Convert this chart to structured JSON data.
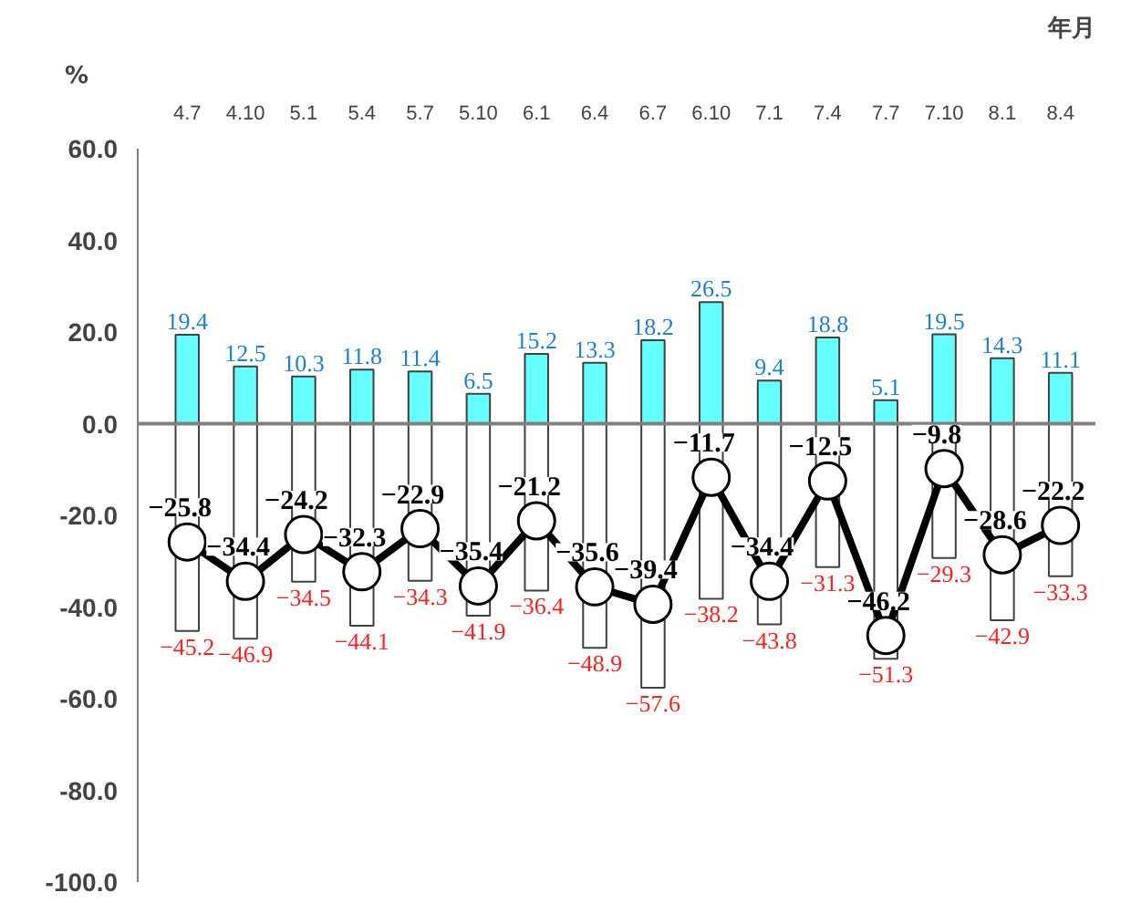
{
  "chart_data": {
    "type": "bar",
    "stacked": true,
    "xlabel": "年月",
    "ylabel": "%",
    "categories": [
      "4.7",
      "4.10",
      "5.1",
      "5.4",
      "5.7",
      "5.10",
      "6.1",
      "6.4",
      "6.7",
      "6.10",
      "7.1",
      "7.4",
      "7.7",
      "7.10",
      "8.1",
      "8.4"
    ],
    "series": [
      {
        "color": "#66ffff",
        "values": [
          19.4,
          12.5,
          10.3,
          11.8,
          11.4,
          6.5,
          15.2,
          13.3,
          18.2,
          26.5,
          9.4,
          18.8,
          5.1,
          19.5,
          14.3,
          11.1
        ]
      },
      {
        "color": "#ffffff",
        "values": [
          -45.2,
          -46.9,
          -34.5,
          -44.1,
          -34.3,
          -41.9,
          -36.4,
          -48.9,
          -57.6,
          -38.2,
          -43.8,
          -31.3,
          -51.3,
          -29.3,
          -42.9,
          -33.3
        ]
      },
      {
        "type": "line",
        "color": "#000000",
        "marker": "circle",
        "values": [
          -25.8,
          -34.4,
          -24.2,
          -32.3,
          -22.9,
          -35.4,
          -21.2,
          -35.6,
          -39.4,
          -11.7,
          -34.4,
          -12.5,
          -46.2,
          -9.8,
          -28.6,
          -22.2
        ]
      }
    ],
    "ylim": [
      -100,
      60
    ],
    "yticks": [
      {
        "value": -100,
        "label": "-100.0"
      },
      {
        "value": -80,
        "label": "-80.0"
      },
      {
        "value": -60,
        "label": "-60.0"
      },
      {
        "value": -40,
        "label": "-40.0"
      },
      {
        "value": -20,
        "label": "-20.0"
      },
      {
        "value": 0,
        "label": "0.0"
      },
      {
        "value": 20,
        "label": "20.0"
      },
      {
        "value": 40,
        "label": "40.0"
      },
      {
        "value": 60,
        "label": "60.0"
      }
    ],
    "ref_lines": [
      {
        "axis": "y",
        "value": 0,
        "color": "#808080"
      }
    ],
    "data_labels": true,
    "grid": false
  }
}
